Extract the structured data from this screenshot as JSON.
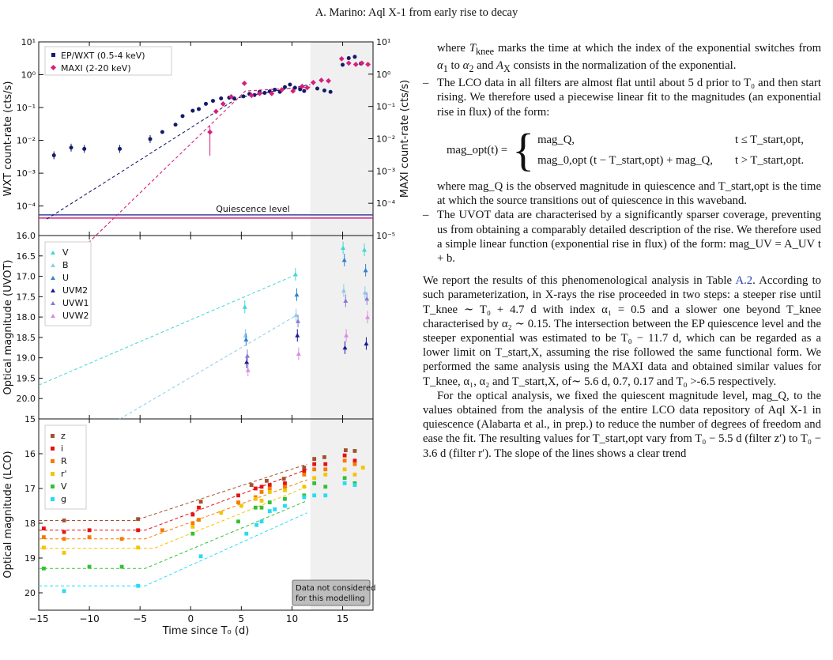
{
  "header": "A. Marino: Aql X-1 from early rise to decay",
  "colors": {
    "wxt": "#141a6b",
    "maxi": "#d6207c",
    "quiescence_wxt": "#3a44a0",
    "quiescence_maxi": "#d6207c",
    "shade": "#f0f0f0",
    "uv_V": "#3ed7d7",
    "uv_B": "#8ccbea",
    "uv_U": "#2f82cf",
    "uv_UVM2": "#1a1a9a",
    "uv_UVW1": "#8a78d8",
    "uv_UVW2": "#d88ee0",
    "lco_z": "#a0522d",
    "lco_i": "#e81010",
    "lco_R": "#f57a00",
    "lco_r'": "#f5c400",
    "lco_V": "#33c033",
    "lco_g": "#22ddf5"
  },
  "figure": {
    "shared_xlabel": "Time since T₀ (d)",
    "xlim": [
      -15,
      18
    ],
    "xticks": [
      -15,
      -10,
      -5,
      0,
      5,
      10,
      15
    ],
    "shade_from": 11.8,
    "panel_top": {
      "ylabel_left": "WXT count-rate (cts/s)",
      "ylabel_right": "MAXI count-rate (cts/s)",
      "yscale": "log",
      "ylim_left_exp": [
        -4.9,
        1
      ],
      "ylim_right_exp": [
        -5,
        1
      ],
      "left_ticks": [
        {
          "label": "10¹",
          "exp": 1
        },
        {
          "label": "10⁰",
          "exp": 0
        },
        {
          "label": "10⁻¹",
          "exp": -1
        },
        {
          "label": "10⁻²",
          "exp": -2
        },
        {
          "label": "10⁻³",
          "exp": -3
        },
        {
          "label": "10⁻⁴",
          "exp": -4
        }
      ],
      "right_ticks": [
        {
          "label": "10¹",
          "exp": 1
        },
        {
          "label": "10⁰",
          "exp": 0
        },
        {
          "label": "10⁻¹",
          "exp": -1
        },
        {
          "label": "10⁻²",
          "exp": -2
        },
        {
          "label": "10⁻³",
          "exp": -3
        },
        {
          "label": "10⁻⁴",
          "exp": -4
        },
        {
          "label": "10⁻⁵",
          "exp": -5
        }
      ],
      "legend": [
        "EP/WXT (0.5-4 keV)",
        "MAXI (2-20 keV)"
      ],
      "quiescence_label": "Quiescence level",
      "quiescence_exp": -4.27
    },
    "panel_mid": {
      "ylabel": "Optical magnitude (UVOT)",
      "ylim": [
        16.0,
        20.5
      ],
      "yticks": [
        "16.0",
        "16.5",
        "17.0",
        "17.5",
        "18.0",
        "18.5",
        "19.0",
        "19.5",
        "20.0"
      ],
      "legend": [
        "V",
        "B",
        "U",
        "UVM2",
        "UVW1",
        "UVW2"
      ]
    },
    "panel_bot": {
      "ylabel": "Optical magnitude (LCO)",
      "ylim": [
        15.0,
        20.5
      ],
      "yticks": [
        "15",
        "16",
        "17",
        "18",
        "19",
        "20"
      ],
      "legend": [
        "z",
        "i",
        "R",
        "r'",
        "V",
        "g"
      ],
      "note": [
        "Data not considered",
        "for this modelling"
      ]
    }
  },
  "chart_data": [
    {
      "type": "scatter",
      "xlabel": "Time since T₀ (d)",
      "ylabel": "WXT count-rate (cts/s)",
      "ylabel_right": "MAXI count-rate (cts/s)",
      "yscale": "log",
      "xlim": [
        -15,
        18
      ],
      "legend": "top-left",
      "series": [
        {
          "name": "EP/WXT (0.5-4 keV)",
          "x": [
            -13.5,
            -11.8,
            -10.5,
            -7.0,
            -4.0,
            -2.8,
            -1.5,
            -0.8,
            0.2,
            0.8,
            1.5,
            2.2,
            3.0,
            3.8,
            4.3,
            5.2,
            5.8,
            6.3,
            6.8,
            7.3,
            7.8,
            8.3,
            8.8,
            9.3,
            9.8,
            10.3,
            10.8,
            11.2,
            12.5,
            13.2,
            13.8,
            15.0,
            15.6,
            16.2,
            16.8
          ],
          "y": [
            0.0035,
            0.006,
            0.0055,
            0.0055,
            0.011,
            0.018,
            0.03,
            0.055,
            0.08,
            0.09,
            0.13,
            0.16,
            0.19,
            0.2,
            0.19,
            0.22,
            0.26,
            0.24,
            0.3,
            0.28,
            0.31,
            0.35,
            0.3,
            0.42,
            0.5,
            0.4,
            0.36,
            0.32,
            0.38,
            0.33,
            0.3,
            2.0,
            3.2,
            3.5,
            2.2
          ]
        },
        {
          "name": "MAXI (2-20 keV)",
          "x": [
            1.9,
            2.5,
            3.2,
            4.0,
            5.3,
            6.0,
            6.8,
            8.0,
            9.0,
            10.1,
            11.0,
            11.5,
            12.1,
            12.9,
            13.6,
            14.9,
            15.6,
            16.3,
            16.9,
            17.5
          ],
          "y": [
            0.016,
            0.07,
            0.12,
            0.2,
            0.52,
            0.22,
            0.25,
            0.25,
            0.33,
            0.3,
            0.42,
            0.38,
            0.55,
            0.65,
            0.62,
            3.0,
            2.2,
            2.0,
            2.2,
            2.0
          ]
        }
      ]
    },
    {
      "type": "scatter",
      "xlabel": "Time since T₀ (d)",
      "ylabel": "Optical magnitude (UVOT)",
      "ylim": [
        16.0,
        20.5
      ],
      "series": [
        {
          "name": "V",
          "x": [
            5.5,
            10.5,
            15.2,
            17.3
          ],
          "y": [
            17.75,
            16.95,
            16.3,
            16.35
          ]
        },
        {
          "name": "B",
          "x": [
            5.5,
            10.5,
            15.2,
            17.3
          ],
          "y": [
            18.45,
            17.95,
            17.35,
            17.4
          ]
        },
        {
          "name": "U",
          "x": [
            5.5,
            10.5,
            15.2,
            17.3
          ],
          "y": [
            18.55,
            17.45,
            16.6,
            16.85
          ]
        },
        {
          "name": "UVM2",
          "x": [
            5.5,
            10.5,
            15.2,
            17.3
          ],
          "y": [
            19.1,
            18.45,
            18.75,
            18.65
          ]
        },
        {
          "name": "UVW1",
          "x": [
            5.5,
            10.5,
            15.2,
            17.3
          ],
          "y": [
            18.95,
            18.1,
            17.6,
            17.55
          ]
        },
        {
          "name": "UVW2",
          "x": [
            5.5,
            10.5,
            15.2,
            17.3
          ],
          "y": [
            19.3,
            18.9,
            18.45,
            18.0
          ]
        }
      ]
    },
    {
      "type": "scatter",
      "xlabel": "Time since T₀ (d)",
      "ylabel": "Optical magnitude (LCO)",
      "ylim": [
        15.0,
        20.5
      ],
      "series": [
        {
          "name": "z",
          "x": [
            -12.5,
            -5.2,
            1.0,
            6.0,
            7.5,
            9.2,
            11.2,
            12.2,
            13.2,
            15.3,
            16.2
          ],
          "y": [
            17.92,
            17.88,
            17.38,
            16.9,
            16.78,
            16.72,
            16.4,
            16.15,
            16.1,
            15.9,
            15.92
          ]
        },
        {
          "name": "i",
          "x": [
            -14.5,
            -12.5,
            -10.0,
            -5.2,
            0.2,
            0.8,
            4.7,
            6.4,
            7.0,
            7.8,
            9.3,
            11.2,
            12.2,
            13.3,
            15.2,
            16.2
          ],
          "y": [
            18.15,
            18.25,
            18.2,
            18.2,
            17.75,
            17.55,
            17.2,
            17.0,
            16.95,
            16.9,
            16.85,
            16.5,
            16.3,
            16.3,
            16.05,
            16.2
          ]
        },
        {
          "name": "R",
          "x": [
            -14.5,
            -12.5,
            -10.0,
            -6.8,
            -2.8,
            0.2,
            0.8,
            4.7,
            6.4,
            7.0,
            7.8,
            9.3,
            11.2,
            12.2,
            13.3,
            15.2,
            16.2
          ],
          "y": [
            18.4,
            18.45,
            18.4,
            18.45,
            18.2,
            18.0,
            17.9,
            17.4,
            17.25,
            17.1,
            17.0,
            16.95,
            16.6,
            16.45,
            16.45,
            16.2,
            16.3
          ]
        },
        {
          "name": "r'",
          "x": [
            -14.5,
            -12.5,
            -5.2,
            0.2,
            3.0,
            5.0,
            6.4,
            7.0,
            7.8,
            9.3,
            11.2,
            12.2,
            13.3,
            15.2,
            16.2,
            17.0
          ],
          "y": [
            18.7,
            18.85,
            18.7,
            18.1,
            17.7,
            17.5,
            17.3,
            17.35,
            17.1,
            17.05,
            16.95,
            16.7,
            16.6,
            16.45,
            16.6,
            16.4
          ]
        },
        {
          "name": "V",
          "x": [
            -14.5,
            -10.0,
            -6.8,
            0.2,
            4.7,
            6.4,
            7.0,
            7.8,
            9.3,
            11.2,
            12.2,
            13.3,
            15.2,
            16.2
          ],
          "y": [
            19.3,
            19.25,
            19.25,
            18.3,
            17.95,
            17.55,
            17.55,
            17.4,
            17.3,
            17.2,
            16.85,
            16.95,
            16.7,
            16.85
          ]
        },
        {
          "name": "g",
          "x": [
            -12.5,
            -5.2,
            1.0,
            5.5,
            6.5,
            7.0,
            7.8,
            8.3,
            9.3,
            11.2,
            12.2,
            13.3,
            15.2,
            16.2
          ],
          "y": [
            19.95,
            19.8,
            18.95,
            18.3,
            18.05,
            17.95,
            17.65,
            17.6,
            17.5,
            17.25,
            17.2,
            17.2,
            16.85,
            16.9
          ]
        }
      ]
    }
  ],
  "text": {
    "p1": [
      "where ",
      "T",
      "knee",
      " marks the time at which the index of the exponential switches from ",
      "α",
      "1",
      " to ",
      "α",
      "2",
      " and ",
      "A",
      "X",
      " consists in the normalization of the exponential."
    ],
    "b1": "The LCO data in all filters are almost flat until about 5 d prior to T₀ and then start rising. We therefore used a piecewise linear fit to the magnitudes (an exponential rise in flux) of the form:",
    "eq_lhs": "mag_opt(t) =",
    "eq_case1": "mag_Q,",
    "eq_cond1": "t ≤ T_start,opt,",
    "eq_case2": "mag_0,opt (t − T_start,opt) + mag_Q,",
    "eq_cond2": "t > T_start,opt.",
    "p2": "where mag_Q is the observed magnitude in quiescence and T_start,opt is the time at which the source transitions out of quiescence in this waveband.",
    "b2": "The UVOT data are characterised by a significantly sparser coverage, preventing us from obtaining a comparably detailed description of the rise. We therefore used a simple linear function (exponential rise in flux) of the form: mag_UV = A_UV t + b.",
    "p3_a": "We report the results of this phenomenological analysis in Table ",
    "p3_ref": "A.2",
    "p3_b": ". According to such parameterization, in X-rays the rise proceeded in two steps: a steeper rise until T_knee ∼ T₀ + 4.7 d with index α₁ = 0.5 and a slower one beyond T_knee characterised by α₂ ∼ 0.15. The intersection between the EP quiescence level and the steeper exponential was estimated to be T₀ − 11.7 d, which can be regarded as a lower limit on T_start,X, assuming the rise followed the same functional form. We performed the same analysis using the MAXI data and obtained similar values for T_knee, α₁, α₂ and T_start,X, of∼ 5.6 d, 0.7, 0.17 and T₀ >-6.5 respectively.",
    "p4": "For the optical analysis, we fixed the quiescent magnitude level, mag_Q, to the values obtained from the analysis of the entire LCO data repository of Aql X-1 in quiescence (Alabarta et al., in prep.) to reduce the number of degrees of freedom and ease the fit. The resulting values for T_start,opt vary from T₀ − 5.5 d (filter z′) to T₀ − 3.6 d (filter r′). The slope of the lines shows a clear trend"
  }
}
